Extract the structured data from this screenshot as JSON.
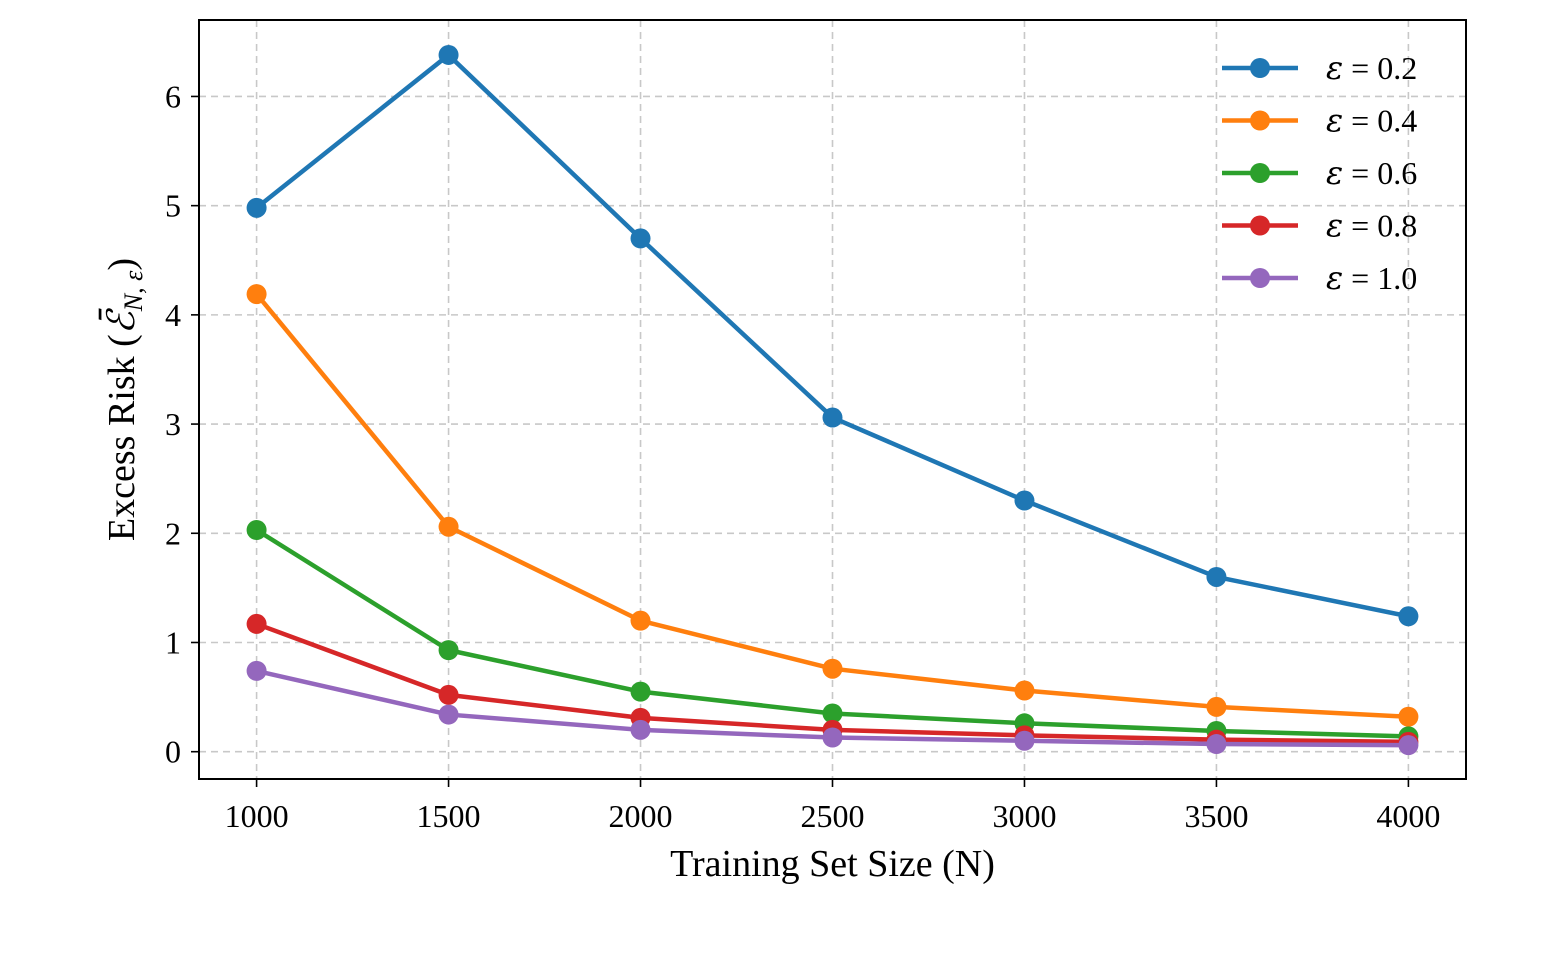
{
  "chart_data": {
    "type": "line",
    "xlabel": "Training Set Size (N)",
    "ylabel_prefix": "Excess Risk (",
    "ylabel_symbol": "ℰ̄",
    "ylabel_subscript": "N, ε",
    "ylabel_suffix": ")",
    "x": [
      1000,
      1500,
      2000,
      2500,
      3000,
      3500,
      4000
    ],
    "x_ticks": [
      "1000",
      "1500",
      "2000",
      "2500",
      "3000",
      "3500",
      "4000"
    ],
    "y_ticks": [
      "0",
      "1",
      "2",
      "3",
      "4",
      "5",
      "6"
    ],
    "xlim": [
      850,
      4150
    ],
    "ylim": [
      -0.25,
      6.7
    ],
    "grid": true,
    "legend_position": "top-right",
    "series": [
      {
        "name": "ε = 0.2",
        "symbol": "ε",
        "rest": " = 0.2",
        "color": "#1f77b4",
        "values": [
          4.98,
          6.38,
          4.7,
          3.06,
          2.3,
          1.6,
          1.24
        ]
      },
      {
        "name": "ε = 0.4",
        "symbol": "ε",
        "rest": " = 0.4",
        "color": "#ff7f0e",
        "values": [
          4.19,
          2.06,
          1.2,
          0.76,
          0.56,
          0.41,
          0.32
        ]
      },
      {
        "name": "ε = 0.6",
        "symbol": "ε",
        "rest": " = 0.6",
        "color": "#2ca02c",
        "values": [
          2.03,
          0.93,
          0.55,
          0.35,
          0.26,
          0.19,
          0.14
        ]
      },
      {
        "name": "ε = 0.8",
        "symbol": "ε",
        "rest": " = 0.8",
        "color": "#d62728",
        "values": [
          1.17,
          0.52,
          0.31,
          0.2,
          0.15,
          0.11,
          0.09
        ]
      },
      {
        "name": "ε = 1.0",
        "symbol": "ε",
        "rest": " = 1.0",
        "color": "#9467bd",
        "values": [
          0.74,
          0.34,
          0.2,
          0.13,
          0.1,
          0.07,
          0.06
        ]
      }
    ]
  }
}
